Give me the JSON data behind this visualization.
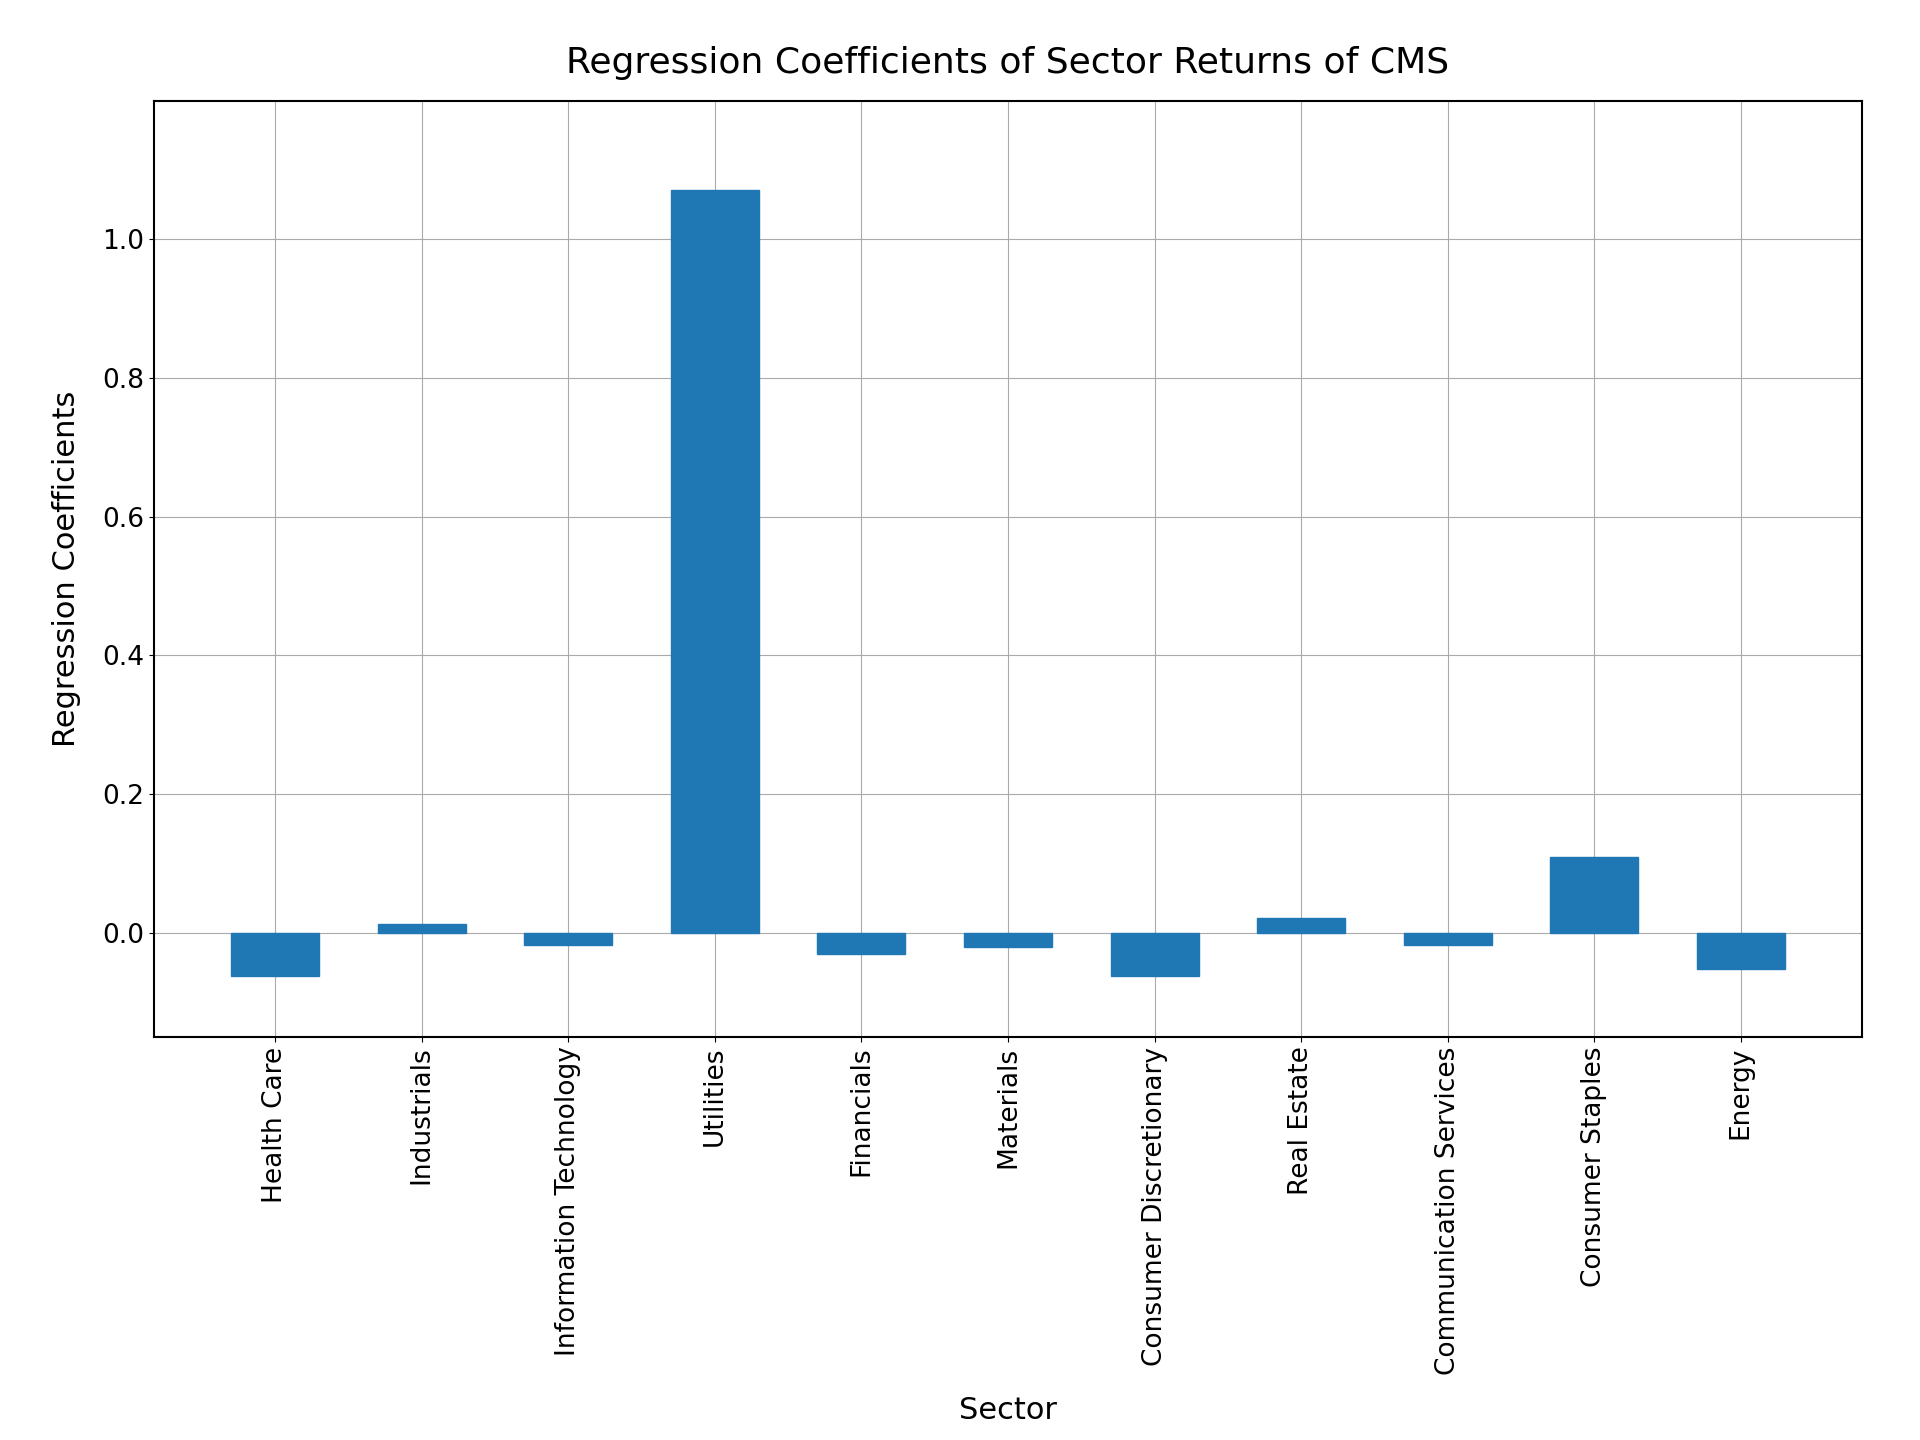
{
  "categories": [
    "Health Care",
    "Industrials",
    "Information Technology",
    "Utilities",
    "Financials",
    "Materials",
    "Consumer Discretionary",
    "Real Estate",
    "Communication Services",
    "Consumer Staples",
    "Energy"
  ],
  "values": [
    -0.063,
    0.012,
    -0.018,
    1.072,
    -0.03,
    -0.021,
    -0.062,
    0.022,
    -0.017,
    0.11,
    -0.052
  ],
  "bar_color": "#1f77b4",
  "title": "Regression Coefficients of Sector Returns of CMS",
  "xlabel": "Sector",
  "ylabel": "Regression Coefficients",
  "title_fontsize": 26,
  "label_fontsize": 22,
  "tick_fontsize": 19,
  "background_color": "#ffffff",
  "grid_color": "#aaaaaa",
  "ylim": [
    -0.15,
    1.2
  ],
  "yticks": [
    0.0,
    0.2,
    0.4,
    0.6,
    0.8,
    1.0
  ],
  "ytick_labels": [
    "0.0",
    "0.2",
    "0.4",
    "0.6",
    "0.8",
    "1.0"
  ]
}
